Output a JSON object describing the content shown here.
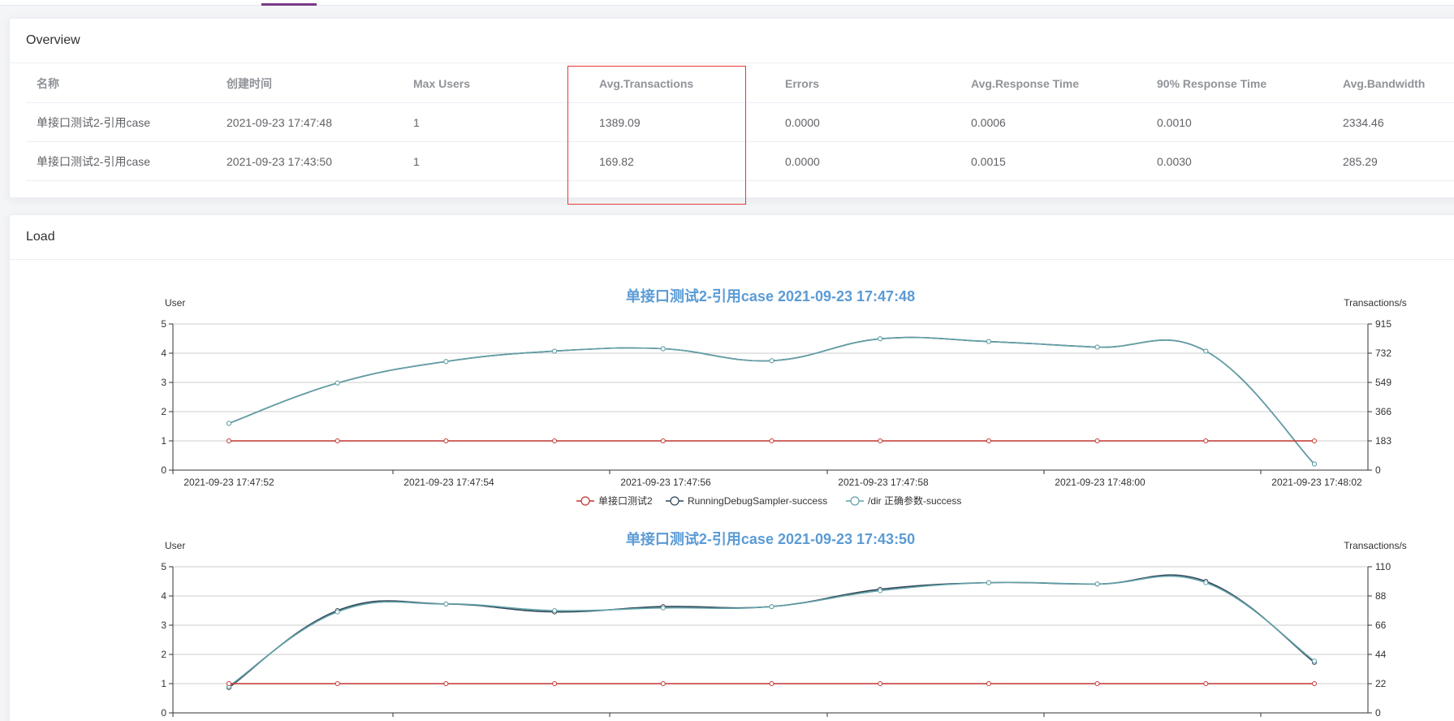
{
  "overview": {
    "title": "Overview",
    "columns": [
      "名称",
      "创建时间",
      "Max Users",
      "Avg.Transactions",
      "Errors",
      "Avg.Response Time",
      "90% Response Time",
      "Avg.Bandwidth"
    ],
    "rows": [
      [
        "单接口测试2-引用case",
        "2021-09-23 17:47:48",
        "1",
        "1389.09",
        "0.0000",
        "0.0006",
        "0.0010",
        "2334.46"
      ],
      [
        "单接口测试2-引用case",
        "2021-09-23 17:43:50",
        "1",
        "169.82",
        "0.0000",
        "0.0015",
        "0.0030",
        "285.29"
      ]
    ]
  },
  "load": {
    "title": "Load"
  },
  "colors": {
    "users": "#c23531",
    "sampler": "#2f4554",
    "dir": "#61a0a8",
    "title": "#5b9bd5"
  },
  "chart_data": [
    {
      "type": "line",
      "title": "单接口测试2-引用case 2021-09-23 17:47:48",
      "ylabel_left": "User",
      "ylabel_right": "Transactions/s",
      "y_left_ticks": [
        "0",
        "1",
        "2",
        "3",
        "4",
        "5"
      ],
      "y_right_ticks": [
        "0",
        "183",
        "366",
        "549",
        "732",
        "915"
      ],
      "x_tick_labels": [
        "2021-09-23 17:47:52",
        "2021-09-23 17:47:54",
        "2021-09-23 17:47:56",
        "2021-09-23 17:47:58",
        "2021-09-23 17:48:00",
        "2021-09-23 17:48:02"
      ],
      "ylim_left": [
        0,
        5
      ],
      "ylim_right": [
        0,
        915
      ],
      "legend": "bottom",
      "series": [
        {
          "name": "单接口测试2",
          "axis": "left",
          "values": [
            1,
            1,
            1,
            1,
            1,
            1,
            1,
            1,
            1,
            1,
            1
          ]
        },
        {
          "name": "RunningDebugSampler-success",
          "axis": "right",
          "values": [
            293,
            545,
            680,
            745,
            760,
            685,
            822,
            805,
            770,
            745,
            38
          ]
        },
        {
          "name": "/dir 正确参数-success",
          "axis": "right",
          "values": [
            293,
            545,
            680,
            745,
            760,
            685,
            822,
            805,
            770,
            745,
            38
          ]
        }
      ]
    },
    {
      "type": "line",
      "title": "单接口测试2-引用case 2021-09-23 17:43:50",
      "ylabel_left": "User",
      "ylabel_right": "Transactions/s",
      "y_left_ticks": [
        "0",
        "1",
        "2",
        "3",
        "4",
        "5"
      ],
      "y_right_ticks": [
        "0",
        "22",
        "44",
        "66",
        "88",
        "110"
      ],
      "ylim_left": [
        0,
        5
      ],
      "ylim_right": [
        0,
        110
      ],
      "series": [
        {
          "name": "单接口测试2",
          "axis": "left",
          "values": [
            1,
            1,
            1,
            1,
            1,
            1,
            1,
            1,
            1,
            1,
            1
          ]
        },
        {
          "name": "RunningDebugSampler-success",
          "axis": "right",
          "values": [
            19,
            77,
            82,
            76,
            80,
            80,
            93,
            98,
            97,
            99,
            38
          ]
        },
        {
          "name": "/dir 正确参数-success",
          "axis": "right",
          "values": [
            20,
            76,
            82,
            77,
            79,
            80,
            92,
            98,
            97,
            98,
            39
          ]
        }
      ]
    }
  ]
}
